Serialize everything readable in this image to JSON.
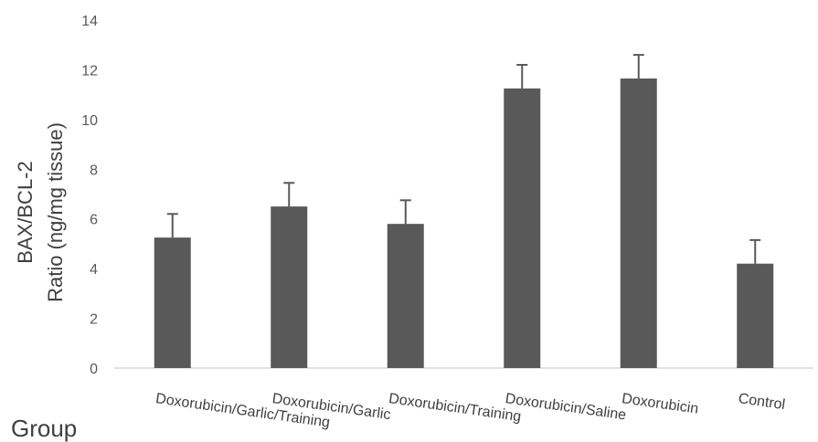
{
  "chart_data": {
    "type": "bar",
    "title": "",
    "xlabel": "Group",
    "ylabel_lines": [
      "BAX/BCL-2",
      "Ratio (ng/mg tissue)"
    ],
    "categories": [
      "Doxorubicin/Garlic/Training",
      "Doxorubicin/Garlic",
      "Doxorubicin/Training",
      "Doxorubicin/Saline",
      "Doxorubicin",
      "Control"
    ],
    "values": [
      5.25,
      6.5,
      5.8,
      11.25,
      11.65,
      4.2
    ],
    "error_bars": [
      0.95,
      0.95,
      0.95,
      0.95,
      0.95,
      0.95
    ],
    "ylim": [
      0,
      14
    ],
    "yticks": [
      0,
      2,
      4,
      6,
      8,
      10,
      12,
      14
    ],
    "grid": false,
    "legend": "none",
    "bar_color": "#595959",
    "axis_color": "#d9d9d9"
  }
}
